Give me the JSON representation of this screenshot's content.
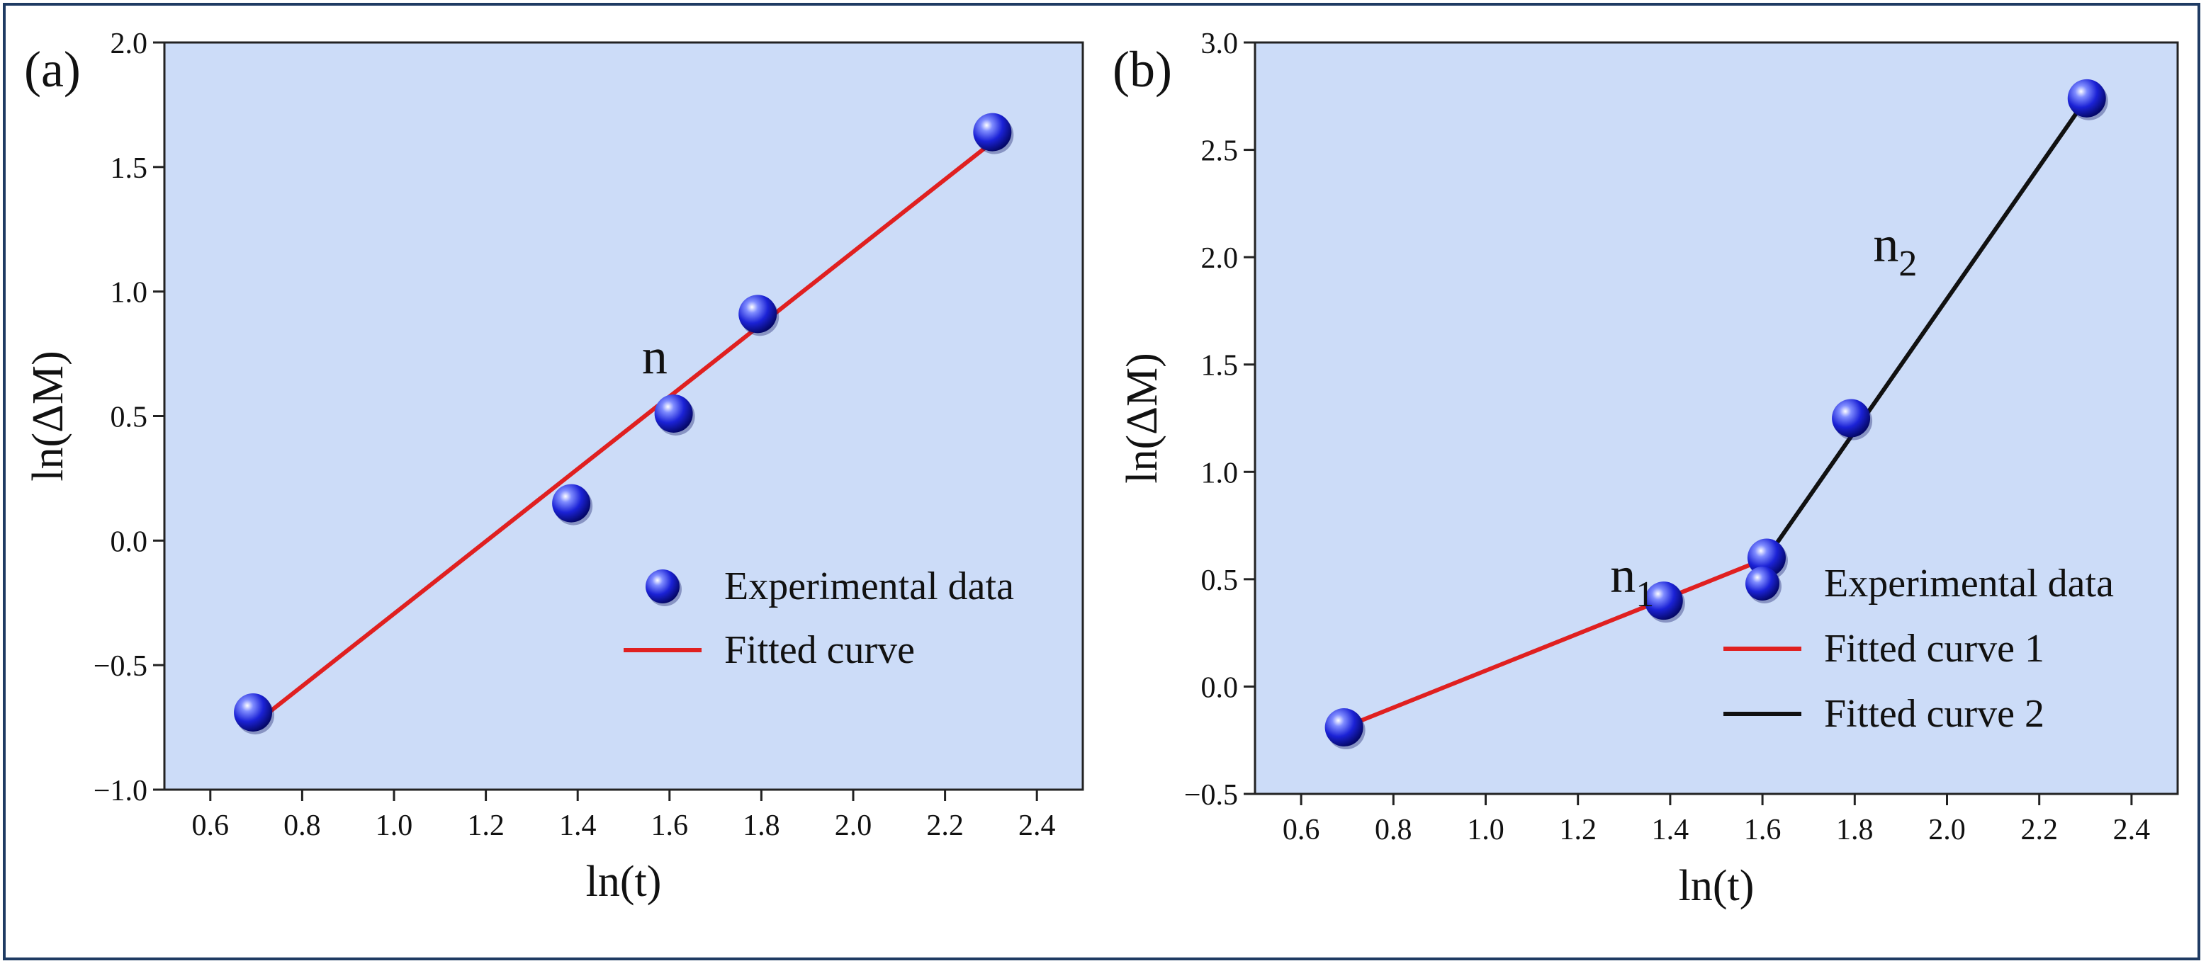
{
  "chart_data": [
    {
      "type": "scatter",
      "panel_label": "(a)",
      "xlabel": "ln(t)",
      "ylabel": "ln(ΔM)",
      "xlim": [
        0.5,
        2.5
      ],
      "ylim": [
        -1.0,
        2.0
      ],
      "xticks": [
        0.6,
        0.8,
        1.0,
        1.2,
        1.4,
        1.6,
        1.8,
        2.0,
        2.2,
        2.4
      ],
      "xtick_labels": [
        "0.6",
        "0.8",
        "1.0",
        "1.2",
        "1.4",
        "1.6",
        "1.8",
        "2.0",
        "2.2",
        "2.4"
      ],
      "yticks": [
        -1.0,
        -0.5,
        0.0,
        0.5,
        1.0,
        1.5,
        2.0
      ],
      "ytick_labels": [
        "−1.0",
        "−0.5",
        "0.0",
        "0.5",
        "1.0",
        "1.5",
        "2.0"
      ],
      "background_color": "#ccdcf8",
      "series": [
        {
          "name": "Experimental data",
          "kind": "points",
          "color": "#2233dd",
          "x": [
            0.693,
            1.386,
            1.609,
            1.792,
            2.303
          ],
          "y": [
            -0.69,
            0.15,
            0.51,
            0.91,
            1.64
          ]
        },
        {
          "name": "Fitted curve",
          "kind": "line",
          "color": "#e02020",
          "x": [
            0.693,
            2.303
          ],
          "y": [
            -0.74,
            1.6
          ]
        }
      ],
      "annotations": [
        {
          "text": "n",
          "sub": "",
          "x": 1.54,
          "y": 0.67
        }
      ],
      "legend": {
        "position": "bottom-right"
      }
    },
    {
      "type": "scatter",
      "panel_label": "(b)",
      "xlabel": "ln(t)",
      "ylabel": "ln(ΔM)",
      "xlim": [
        0.5,
        2.5
      ],
      "ylim": [
        -0.5,
        3.0
      ],
      "xticks": [
        0.6,
        0.8,
        1.0,
        1.2,
        1.4,
        1.6,
        1.8,
        2.0,
        2.2,
        2.4
      ],
      "xtick_labels": [
        "0.6",
        "0.8",
        "1.0",
        "1.2",
        "1.4",
        "1.6",
        "1.8",
        "2.0",
        "2.2",
        "2.4"
      ],
      "yticks": [
        -0.5,
        0.0,
        0.5,
        1.0,
        1.5,
        2.0,
        2.5,
        3.0
      ],
      "ytick_labels": [
        "−0.5",
        "0.0",
        "0.5",
        "1.0",
        "1.5",
        "2.0",
        "2.5",
        "3.0"
      ],
      "background_color": "#ccdcf8",
      "series": [
        {
          "name": "Experimental data",
          "kind": "points",
          "color": "#2233dd",
          "x": [
            0.693,
            1.386,
            1.609,
            1.792,
            2.303
          ],
          "y": [
            -0.19,
            0.4,
            0.6,
            1.25,
            2.74
          ]
        },
        {
          "name": "Fitted curve 1",
          "kind": "line",
          "color": "#e02020",
          "x": [
            0.693,
            1.6
          ],
          "y": [
            -0.19,
            0.59
          ]
        },
        {
          "name": "Fitted curve 2",
          "kind": "line",
          "color": "#111111",
          "x": [
            1.609,
            2.303
          ],
          "y": [
            0.6,
            2.74
          ]
        }
      ],
      "annotations": [
        {
          "text": "n",
          "sub": "1",
          "x": 1.27,
          "y": 0.44
        },
        {
          "text": "n",
          "sub": "2",
          "x": 1.84,
          "y": 1.98
        }
      ],
      "legend": {
        "position": "bottom-right"
      }
    }
  ]
}
